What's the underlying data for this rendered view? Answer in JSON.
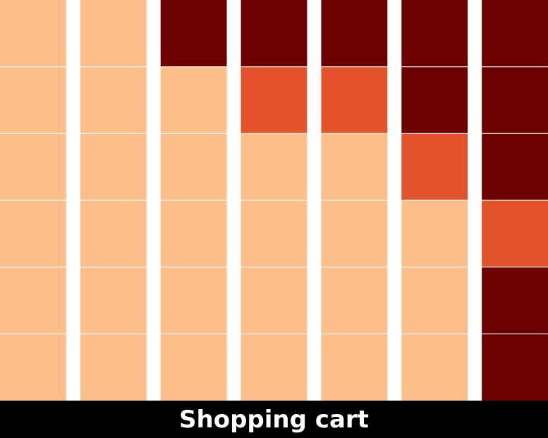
{
  "chart_data": {
    "type": "heatmap",
    "title": "",
    "xlabel": "Shopping cart",
    "ylabel": "",
    "colors": {
      "0": "#FDBE89",
      "1": "#E2522B",
      "2": "#6D0000"
    },
    "grid": [
      [
        0,
        0,
        2,
        2,
        2,
        2,
        2
      ],
      [
        0,
        0,
        0,
        1,
        1,
        2,
        2
      ],
      [
        0,
        0,
        0,
        0,
        0,
        1,
        2
      ],
      [
        0,
        0,
        0,
        0,
        0,
        0,
        1
      ],
      [
        0,
        0,
        0,
        0,
        0,
        0,
        2
      ],
      [
        0,
        0,
        0,
        0,
        0,
        0,
        2
      ]
    ]
  }
}
